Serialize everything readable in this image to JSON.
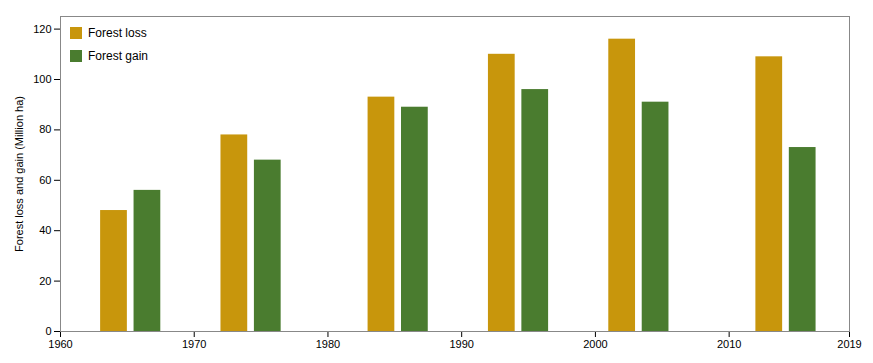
{
  "chart_data": {
    "type": "bar",
    "ylabel": "Forest loss and gain (Million ha)",
    "series": [
      {
        "name": "Forest loss",
        "color": "#C8960C",
        "x": [
          1964,
          1973,
          1984,
          1993,
          2002,
          2013
        ],
        "values": [
          48,
          78,
          93,
          110,
          116,
          109
        ]
      },
      {
        "name": "Forest gain",
        "color": "#4A7C2F",
        "x": [
          1966.5,
          1975.5,
          1986.5,
          1995.5,
          2004.5,
          2015.5
        ],
        "values": [
          56,
          68,
          89,
          96,
          91,
          73
        ]
      }
    ],
    "xlim": [
      1960,
      2019
    ],
    "xticks": [
      1960,
      1970,
      1980,
      1990,
      2000,
      2010,
      2019
    ],
    "ylim": [
      0,
      125
    ],
    "yticks": [
      0,
      20,
      40,
      60,
      80,
      100,
      120
    ],
    "grid": false,
    "legend": "upper left"
  }
}
